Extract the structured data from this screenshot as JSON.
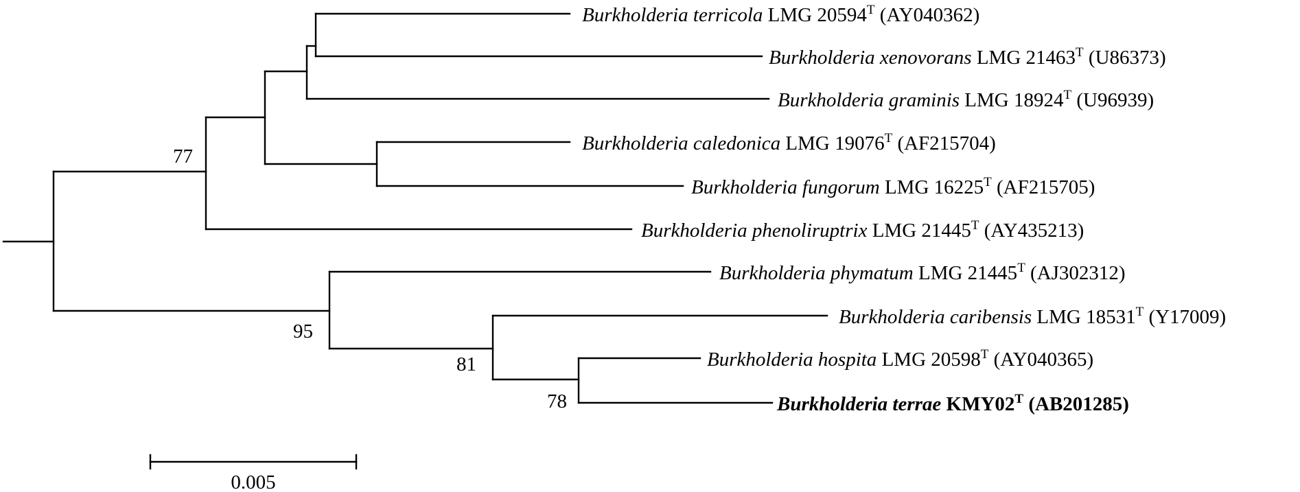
{
  "tree": {
    "taxa": [
      {
        "genus": "Burkholderia",
        "species": "terricola",
        "strain": "LMG 20594",
        "type_mark": "T",
        "accession": "(AY040362)",
        "bold": false
      },
      {
        "genus": "Burkholderia",
        "species": "xenovorans",
        "strain": "LMG 21463",
        "type_mark": "T",
        "accession": "(U86373)",
        "bold": false
      },
      {
        "genus": "Burkholderia",
        "species": "graminis",
        "strain": "LMG 18924",
        "type_mark": "T",
        "accession": "(U96939)",
        "bold": false
      },
      {
        "genus": "Burkholderia",
        "species": "caledonica",
        "strain": "LMG 19076",
        "type_mark": "T",
        "accession": "(AF215704)",
        "bold": false
      },
      {
        "genus": "Burkholderia",
        "species": "fungorum",
        "strain": "LMG 16225",
        "type_mark": "T",
        "accession": "(AF215705)",
        "bold": false
      },
      {
        "genus": "Burkholderia",
        "species": "phenoliruptrix",
        "strain": "LMG 21445",
        "type_mark": "T",
        "accession": "(AY435213)",
        "bold": false
      },
      {
        "genus": "Burkholderia",
        "species": "phymatum",
        "strain": "LMG 21445",
        "type_mark": "T",
        "accession": "(AJ302312)",
        "bold": false
      },
      {
        "genus": "Burkholderia",
        "species": "caribensis",
        "strain": "LMG 18531",
        "type_mark": "T",
        "accession": "(Y17009)",
        "bold": false
      },
      {
        "genus": "Burkholderia",
        "species": "hospita",
        "strain": "LMG 20598",
        "type_mark": "T",
        "accession": "(AY040365)",
        "bold": false
      },
      {
        "genus": "Burkholderia",
        "species": "terrae",
        "strain": "KMY02",
        "type_mark": "T",
        "accession": "(AB201285)",
        "bold": true
      }
    ],
    "bootstrap_values": [
      "77",
      "95",
      "81",
      "78"
    ],
    "scale_bar": {
      "label": "0.005"
    }
  }
}
